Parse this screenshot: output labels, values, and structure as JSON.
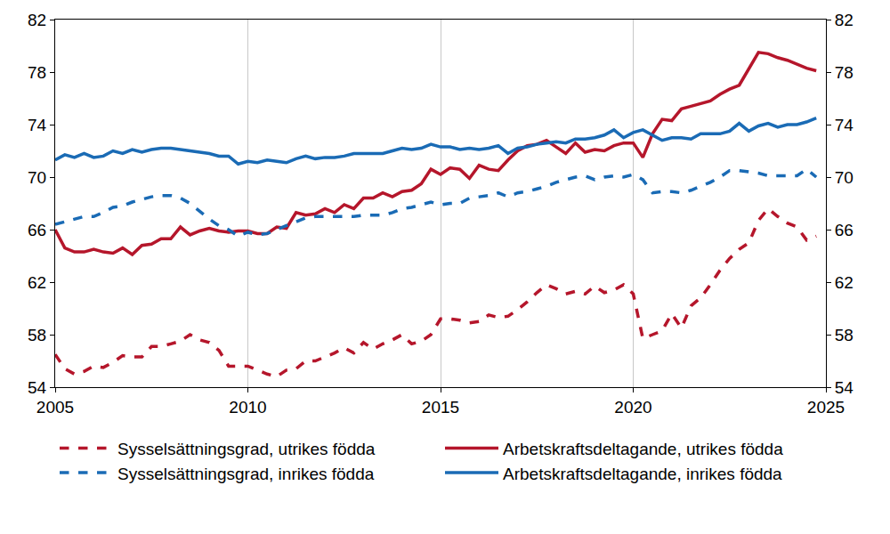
{
  "chart_data": {
    "type": "line",
    "x": [
      2005,
      2005.25,
      2005.5,
      2005.75,
      2006,
      2006.25,
      2006.5,
      2006.75,
      2007,
      2007.25,
      2007.5,
      2007.75,
      2008,
      2008.25,
      2008.5,
      2008.75,
      2009,
      2009.25,
      2009.5,
      2009.75,
      2010,
      2010.25,
      2010.5,
      2010.75,
      2011,
      2011.25,
      2011.5,
      2011.75,
      2012,
      2012.25,
      2012.5,
      2012.75,
      2013,
      2013.25,
      2013.5,
      2013.75,
      2014,
      2014.25,
      2014.5,
      2014.75,
      2015,
      2015.25,
      2015.5,
      2015.75,
      2016,
      2016.25,
      2016.5,
      2016.75,
      2017,
      2017.25,
      2017.5,
      2017.75,
      2018,
      2018.25,
      2018.5,
      2018.75,
      2019,
      2019.25,
      2019.5,
      2019.75,
      2020,
      2020.25,
      2020.5,
      2020.75,
      2021,
      2021.25,
      2021.5,
      2021.75,
      2022,
      2022.25,
      2022.5,
      2022.75,
      2023,
      2023.25,
      2023.5,
      2023.75,
      2024,
      2024.25,
      2024.5,
      2024.75
    ],
    "xlim": [
      2005,
      2025
    ],
    "xticks": [
      2005,
      2010,
      2015,
      2020,
      2025
    ],
    "ylim": [
      54,
      82
    ],
    "yticks": [
      54,
      58,
      62,
      66,
      70,
      74,
      78,
      82
    ],
    "grid": true,
    "legend": "bottom",
    "series": [
      {
        "name": "Sysselsättningsgrad, utrikes födda",
        "color": "#b5162b",
        "line_style": "dash",
        "values": [
          56.5,
          55.4,
          55.0,
          55.2,
          55.6,
          55.5,
          55.9,
          56.4,
          56.3,
          56.3,
          57.1,
          57.1,
          57.3,
          57.5,
          58.0,
          57.6,
          57.4,
          56.8,
          55.6,
          55.6,
          55.6,
          55.3,
          55.0,
          54.8,
          55.3,
          55.4,
          56.0,
          56.0,
          56.3,
          56.6,
          57.0,
          56.6,
          57.4,
          56.9,
          57.3,
          57.6,
          58.0,
          57.3,
          57.5,
          58.0,
          59.2,
          59.2,
          59.1,
          58.9,
          59.0,
          59.5,
          59.3,
          59.4,
          59.9,
          60.5,
          61.2,
          61.8,
          61.5,
          61.1,
          61.3,
          61.1,
          61.7,
          61.2,
          61.4,
          61.8,
          61.1,
          57.7,
          58.0,
          58.3,
          59.6,
          58.5,
          60.2,
          60.8,
          61.8,
          62.9,
          63.8,
          64.5,
          65.0,
          66.7,
          67.6,
          67.0,
          66.5,
          66.2,
          65.2,
          65.5
        ]
      },
      {
        "name": "Arbetskraftsdeltagande, utrikes födda",
        "color": "#b5162b",
        "line_style": "solid",
        "values": [
          66.0,
          64.6,
          64.3,
          64.3,
          64.5,
          64.3,
          64.2,
          64.6,
          64.1,
          64.8,
          64.9,
          65.3,
          65.3,
          66.2,
          65.6,
          65.9,
          66.1,
          65.9,
          65.8,
          65.9,
          65.9,
          65.7,
          65.7,
          66.2,
          66.1,
          67.3,
          67.1,
          67.2,
          67.6,
          67.3,
          67.9,
          67.6,
          68.4,
          68.4,
          68.8,
          68.5,
          68.9,
          69.0,
          69.5,
          70.6,
          70.2,
          70.7,
          70.6,
          69.9,
          70.9,
          70.6,
          70.5,
          71.3,
          72.0,
          72.4,
          72.5,
          72.8,
          72.3,
          71.8,
          72.6,
          71.9,
          72.1,
          72.0,
          72.4,
          72.6,
          72.6,
          71.5,
          73.3,
          74.4,
          74.3,
          75.2,
          75.4,
          75.6,
          75.8,
          76.3,
          76.7,
          77.0,
          78.3,
          79.5,
          79.4,
          79.1,
          78.9,
          78.6,
          78.3,
          78.1
        ]
      },
      {
        "name": "Sysselsättningsgrad, inrikes födda",
        "color": "#1a6bb5",
        "line_style": "dash",
        "values": [
          66.4,
          66.6,
          66.8,
          67.0,
          67.0,
          67.3,
          67.7,
          67.8,
          68.1,
          68.3,
          68.5,
          68.6,
          68.6,
          68.4,
          68.0,
          67.4,
          66.8,
          66.3,
          66.0,
          65.5,
          65.8,
          65.6,
          65.7,
          66.0,
          66.3,
          66.6,
          66.9,
          67.0,
          67.0,
          67.0,
          67.0,
          67.0,
          67.1,
          67.1,
          67.1,
          67.3,
          67.6,
          67.7,
          67.9,
          68.1,
          67.9,
          68.0,
          68.0,
          68.4,
          68.5,
          68.6,
          68.8,
          68.5,
          68.8,
          68.9,
          69.1,
          69.3,
          69.6,
          69.8,
          70.0,
          70.1,
          69.8,
          70.0,
          70.1,
          70.0,
          70.2,
          69.8,
          68.8,
          68.9,
          68.9,
          68.8,
          69.0,
          69.3,
          69.6,
          70.0,
          70.5,
          70.5,
          70.4,
          70.3,
          70.1,
          70.1,
          70.1,
          70.1,
          70.6,
          70.0
        ]
      },
      {
        "name": "Arbetskraftsdeltagande, inrikes födda",
        "color": "#1a6bb5",
        "line_style": "solid",
        "values": [
          71.3,
          71.7,
          71.5,
          71.8,
          71.5,
          71.6,
          72.0,
          71.8,
          72.1,
          71.9,
          72.1,
          72.2,
          72.2,
          72.1,
          72.0,
          71.9,
          71.8,
          71.6,
          71.6,
          71.0,
          71.2,
          71.1,
          71.3,
          71.2,
          71.1,
          71.4,
          71.6,
          71.4,
          71.5,
          71.5,
          71.6,
          71.8,
          71.8,
          71.8,
          71.8,
          72.0,
          72.2,
          72.1,
          72.2,
          72.5,
          72.3,
          72.3,
          72.1,
          72.2,
          72.1,
          72.2,
          72.4,
          71.8,
          72.2,
          72.3,
          72.5,
          72.6,
          72.7,
          72.6,
          72.9,
          72.9,
          73.0,
          73.2,
          73.6,
          73.0,
          73.4,
          73.6,
          73.2,
          72.8,
          73.0,
          73.0,
          72.9,
          73.3,
          73.3,
          73.3,
          73.5,
          74.1,
          73.5,
          73.9,
          74.1,
          73.8,
          74.0,
          74.0,
          74.2,
          74.5
        ]
      }
    ]
  }
}
